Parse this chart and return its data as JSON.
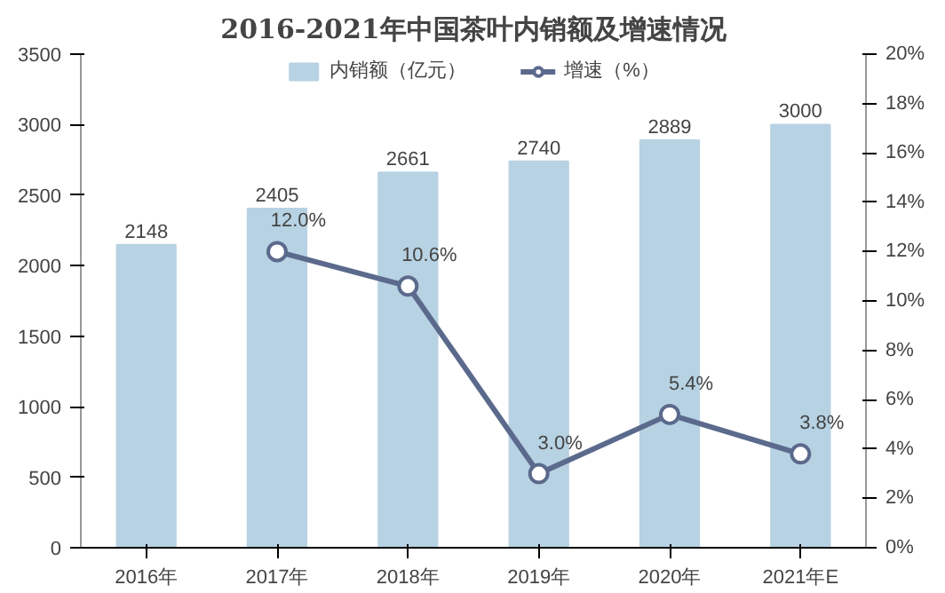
{
  "chart_data": {
    "type": "bar",
    "title": "2016-2021年中国茶叶内销额及增速情况",
    "categories": [
      "2016年",
      "2017年",
      "2018年",
      "2019年",
      "2020年",
      "2021年E"
    ],
    "series": [
      {
        "name": "内销额（亿元）",
        "color": "#b7d2e3",
        "values": [
          2148,
          2405,
          2661,
          2740,
          2889,
          3000
        ],
        "value_labels": [
          "2148",
          "2405",
          "2661",
          "2740",
          "2889",
          "3000"
        ]
      },
      {
        "name": "增速（%）",
        "type": "line",
        "axis": "y2",
        "color": "#5b6a8c",
        "marker": "circle",
        "values": [
          null,
          12.0,
          10.6,
          3.0,
          5.4,
          3.8
        ],
        "value_labels": [
          null,
          "12.0%",
          "10.6%",
          "3.0%",
          "5.4%",
          "3.8%"
        ]
      }
    ],
    "ylim": [
      0,
      3500
    ],
    "yticks": [
      0,
      500,
      1000,
      1500,
      2000,
      2500,
      3000,
      3500
    ],
    "y2lim": [
      0,
      20
    ],
    "y2ticks": [
      {
        "value": 0,
        "label": "0%"
      },
      {
        "value": 2,
        "label": "2%"
      },
      {
        "value": 4,
        "label": "4%"
      },
      {
        "value": 6,
        "label": "6%"
      },
      {
        "value": 8,
        "label": "8%"
      },
      {
        "value": 10,
        "label": "10%"
      },
      {
        "value": 12,
        "label": "12%"
      },
      {
        "value": 14,
        "label": "14%"
      },
      {
        "value": 16,
        "label": "16%"
      },
      {
        "value": 18,
        "label": "18%"
      },
      {
        "value": 20,
        "label": "20%"
      }
    ],
    "legend": "top"
  }
}
